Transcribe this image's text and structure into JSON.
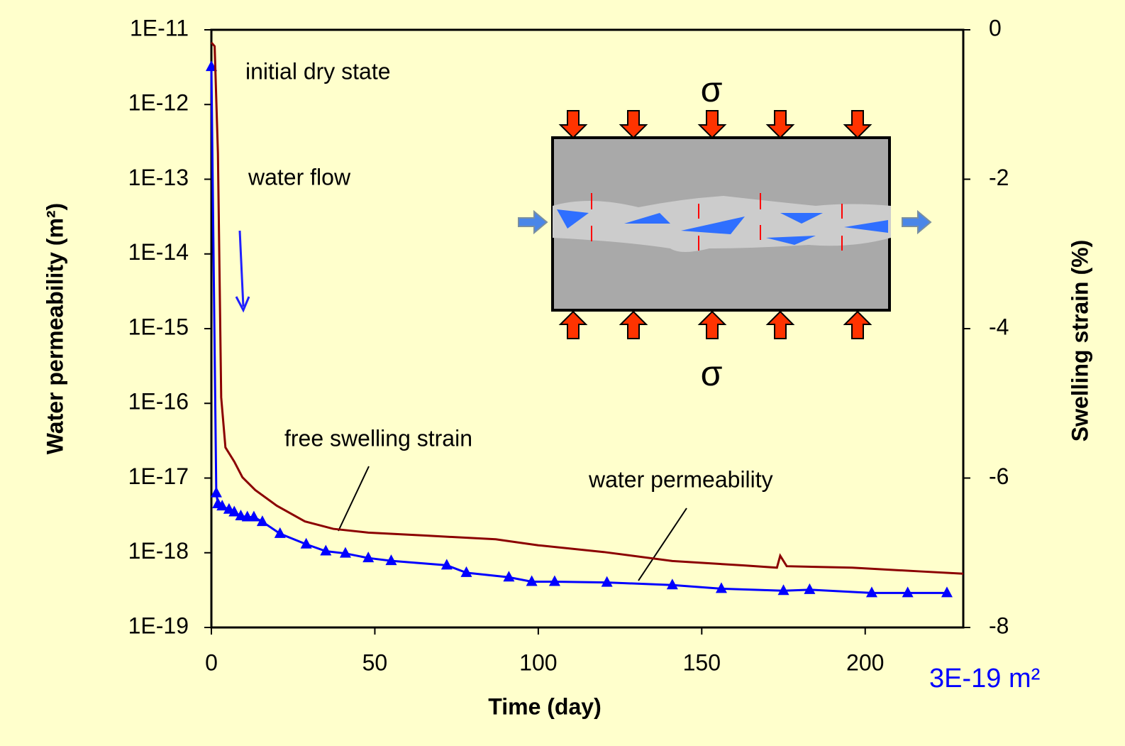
{
  "chart_data": {
    "type": "line",
    "xlabel": "Time   (day)",
    "ylabel": "Water permeability   (m²)",
    "y2label": "Swelling strain   (%)",
    "xlim": [
      0,
      230
    ],
    "xticks": [
      0,
      50,
      100,
      150,
      200
    ],
    "yscale": "log",
    "ylim": [
      1e-19,
      1e-11
    ],
    "yticks": [
      {
        "value": 1e-11,
        "label": "1E-11"
      },
      {
        "value": 1e-12,
        "label": "1E-12"
      },
      {
        "value": 1e-13,
        "label": "1E-13"
      },
      {
        "value": 1e-14,
        "label": "1E-14"
      },
      {
        "value": 1e-15,
        "label": "1E-15"
      },
      {
        "value": 1e-16,
        "label": "1E-16"
      },
      {
        "value": 1e-17,
        "label": "1E-17"
      },
      {
        "value": 1e-18,
        "label": "1E-18"
      },
      {
        "value": 1e-19,
        "label": "1E-19"
      }
    ],
    "y2lim": [
      -8,
      0
    ],
    "y2ticks": [
      0,
      -2,
      -4,
      -6,
      -8
    ],
    "series": [
      {
        "name": "water permeability",
        "color": "#0000ff",
        "marker": "triangle",
        "x": [
          0,
          1.5,
          2,
          3.3,
          5.4,
          7,
          9,
          11,
          13,
          15.6,
          21,
          29,
          35,
          41,
          48,
          55,
          72,
          78,
          91,
          98,
          105,
          121,
          141,
          156,
          175,
          183,
          202,
          213,
          225
        ],
        "values": [
          3.2e-12,
          6.3e-18,
          4.5e-18,
          4.2e-18,
          3.8e-18,
          3.5e-18,
          3.1e-18,
          3e-18,
          3e-18,
          2.6e-18,
          1.8e-18,
          1.3e-18,
          1.05e-18,
          9.8e-19,
          8.5e-19,
          7.8e-19,
          6.8e-19,
          5.4e-19,
          4.7e-19,
          4.1e-19,
          4.1e-19,
          4e-19,
          3.7e-19,
          3.3e-19,
          3.1e-19,
          3.2e-19,
          2.9e-19,
          2.9e-19,
          2.9e-19
        ]
      },
      {
        "name": "free swelling strain",
        "color": "#8b0000",
        "axis": "y2",
        "x": [
          0,
          1,
          2,
          3,
          4.3,
          7,
          9.5,
          13.4,
          20,
          28.6,
          37.3,
          48,
          65.5,
          87,
          100,
          120,
          141,
          163,
          173,
          174,
          176,
          196,
          217,
          230
        ],
        "values": [
          -0.17,
          -0.22,
          -1.65,
          -4.92,
          -5.59,
          -5.78,
          -5.99,
          -6.16,
          -6.37,
          -6.58,
          -6.68,
          -6.73,
          -6.77,
          -6.82,
          -6.9,
          -6.99,
          -7.11,
          -7.17,
          -7.2,
          -7.04,
          -7.18,
          -7.2,
          -7.25,
          -7.28
        ]
      }
    ],
    "annotations": [
      "initial dry state",
      "water flow",
      "σ",
      "σ",
      "3E-19 m²"
    ]
  }
}
